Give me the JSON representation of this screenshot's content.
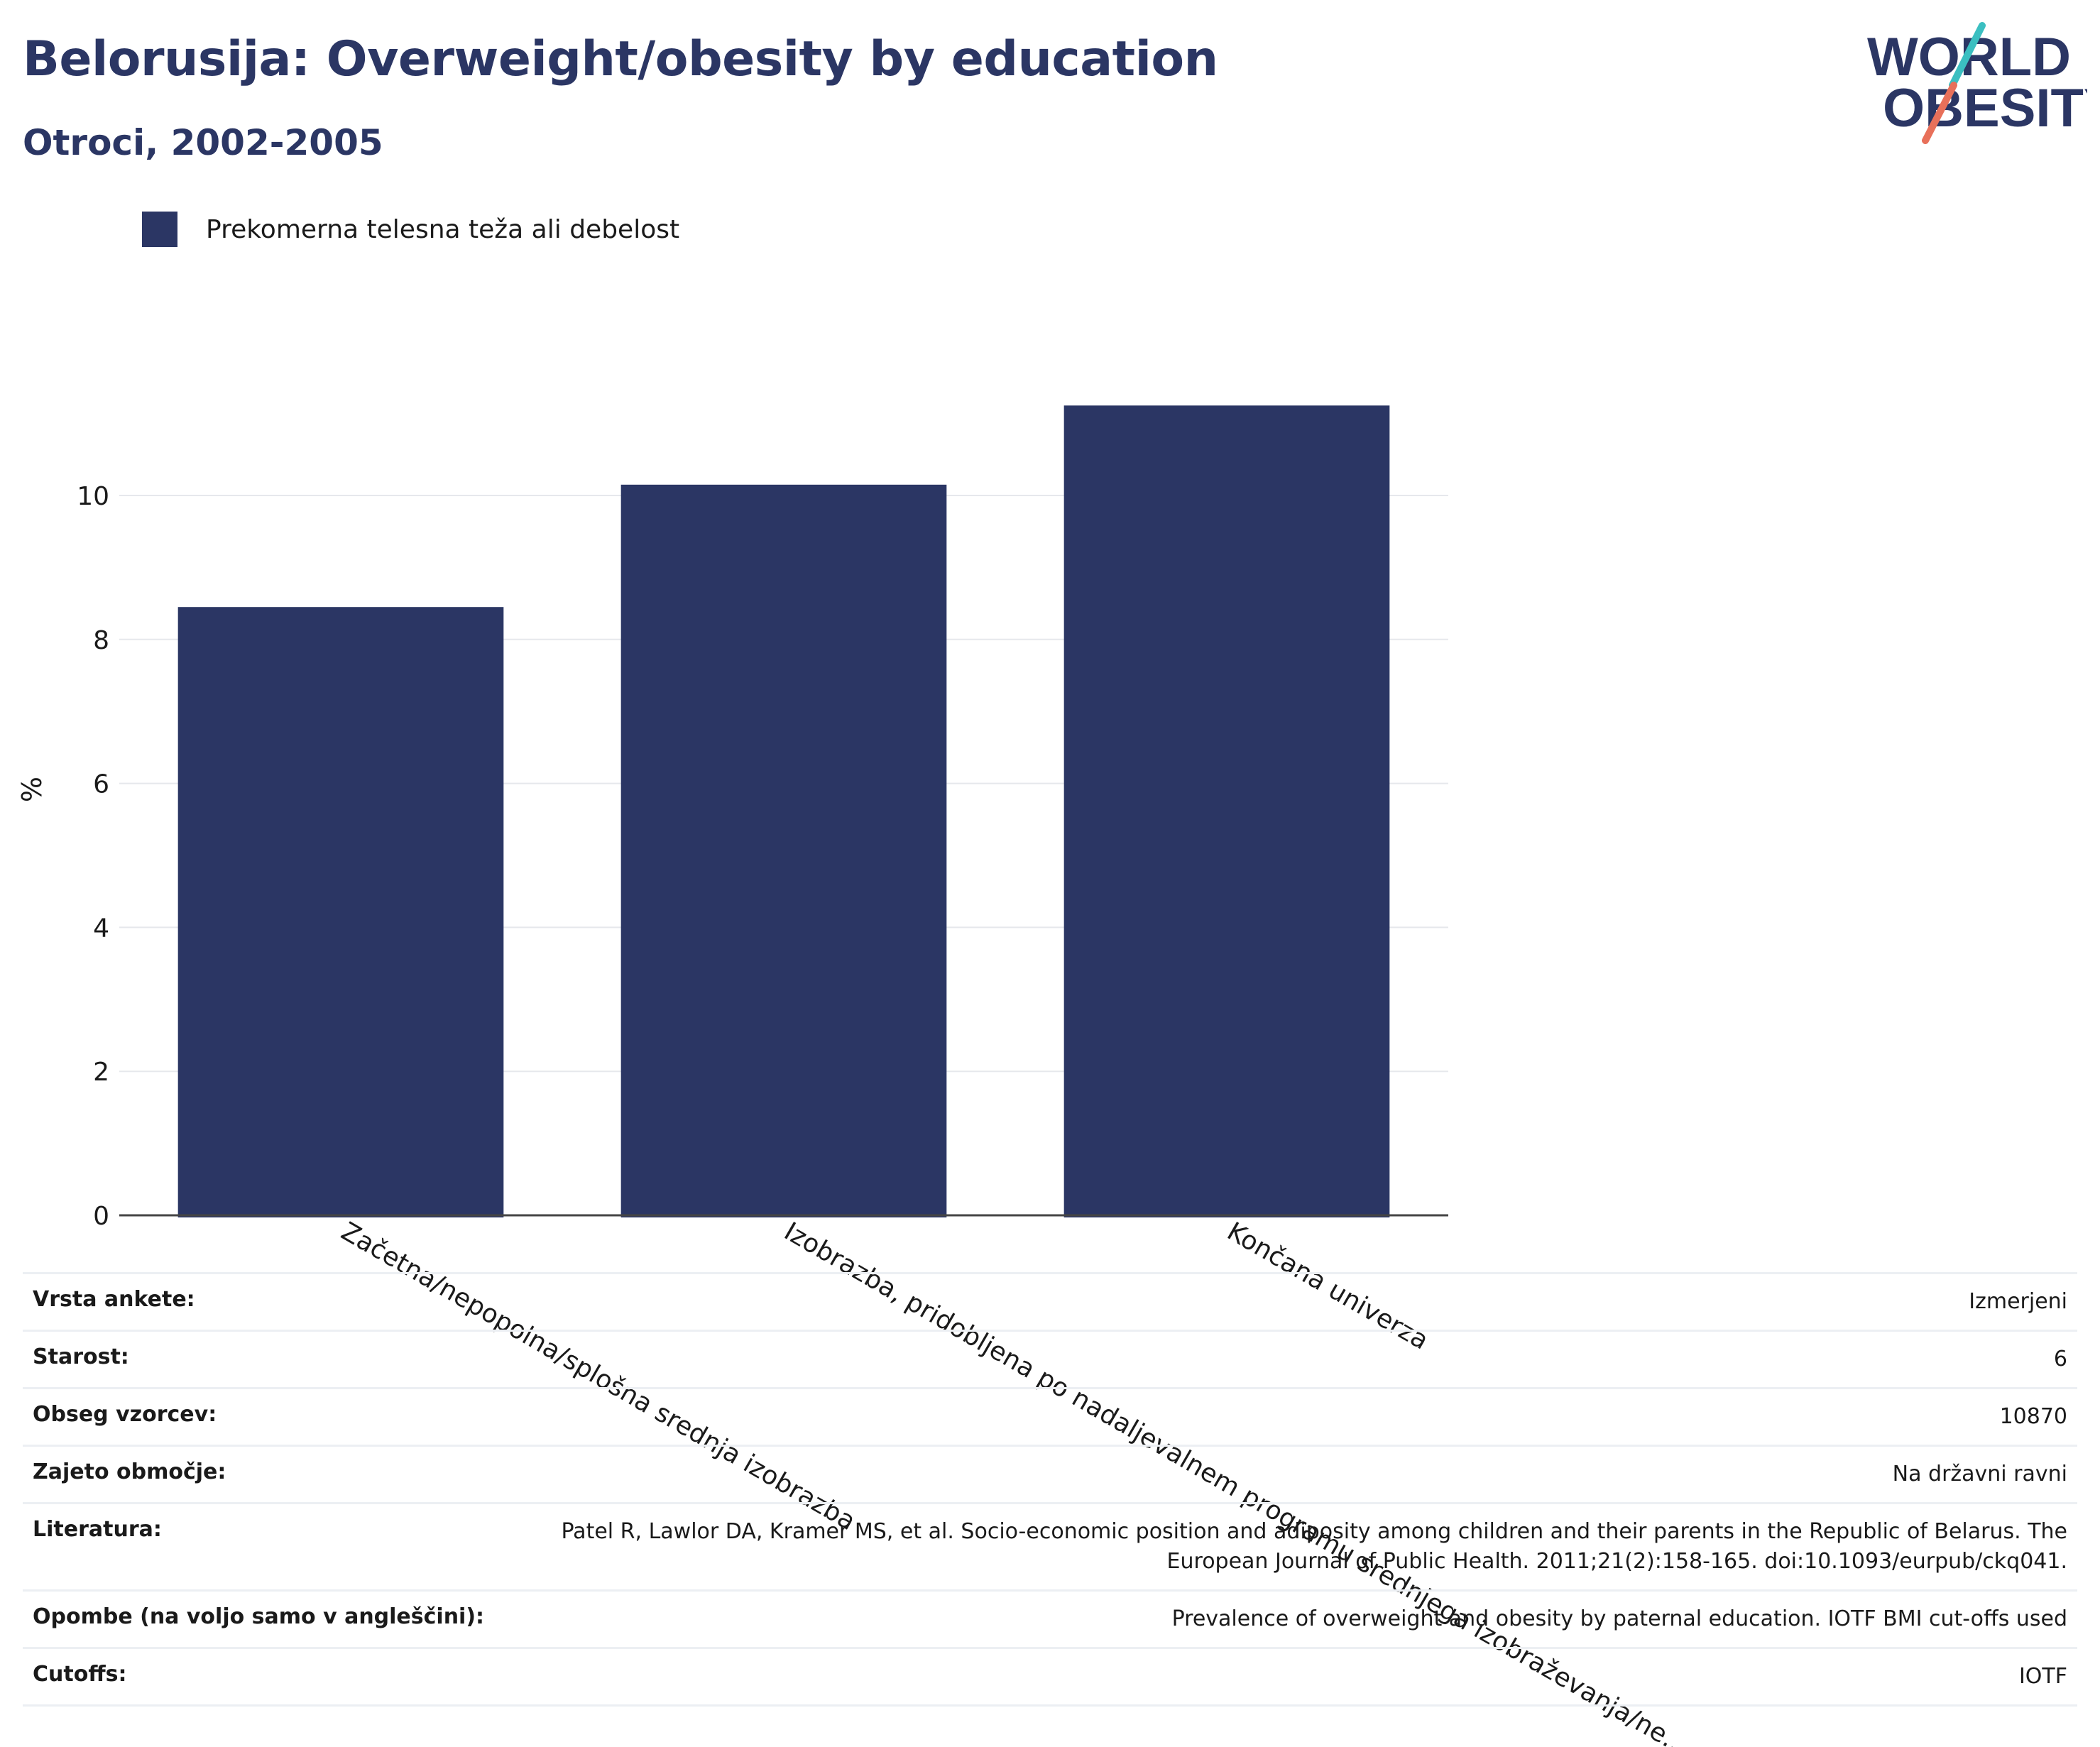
{
  "header": {
    "title": "Belorusija: Overweight/obesity by education",
    "subtitle": "Otroci, 2002-2005",
    "logo_line1": "WORLD",
    "logo_line2": "OBESITY"
  },
  "legend": {
    "label": "Prekomerna telesna teža ali debelost",
    "color": "#2b3664"
  },
  "chart_data": {
    "type": "bar",
    "categories": [
      "Začetna/nepopolna/splošna srednja izobrazba",
      "Izobrazba, pridobljena po nadaljevalnem programu srednjega izobraževanja/ne...",
      "Končana univerza"
    ],
    "series": [
      {
        "name": "Prekomerna telesna teža ali debelost",
        "values": [
          8.45,
          10.15,
          11.25
        ],
        "color": "#2b3664"
      }
    ],
    "ylabel": "%",
    "xlabel": "",
    "ylim": [
      0,
      12
    ],
    "yticks": [
      0,
      2,
      4,
      6,
      8,
      10
    ],
    "grid": true,
    "legend_position": "top-left"
  },
  "details": [
    {
      "label": "Vrsta ankete:",
      "value": "Izmerjeni"
    },
    {
      "label": "Starost:",
      "value": "6"
    },
    {
      "label": "Obseg vzorcev:",
      "value": "10870"
    },
    {
      "label": "Zajeto območje:",
      "value": "Na državni ravni"
    },
    {
      "label": "Literatura:",
      "value": "Patel R, Lawlor DA, Kramer MS, et al. Socio-economic position and adiposity among children and their parents in the Republic of Belarus. The European Journal of Public Health. 2011;21(2):158-165. doi:10.1093/eurpub/ckq041."
    },
    {
      "label": "Opombe (na voljo samo v angleščini):",
      "value": "Prevalence of overweight and obesity by paternal education. IOTF BMI cut-offs used"
    },
    {
      "label": "Cutoffs:",
      "value": "IOTF"
    }
  ]
}
